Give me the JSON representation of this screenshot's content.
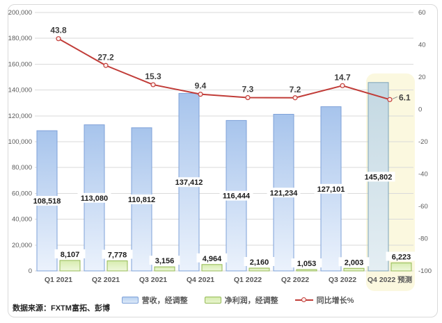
{
  "chart_data": {
    "type": "combo",
    "categories": [
      "Q1 2021",
      "Q2 2021",
      "Q3 2021",
      "Q4 2021",
      "Q1 2022",
      "Q2 2022",
      "Q3 2022",
      "Q4 2022 预测"
    ],
    "series": [
      {
        "name": "营收，经调整",
        "chart_type": "bar",
        "axis": "left",
        "values": [
          108518,
          113080,
          110812,
          137412,
          116444,
          121234,
          127101,
          145802
        ],
        "labels": [
          "108,518",
          "113,080",
          "110,812",
          "137,412",
          "116,444",
          "121,234",
          "127,101",
          "145,802"
        ]
      },
      {
        "name": "净利润，经调整",
        "chart_type": "bar",
        "axis": "left",
        "values": [
          8107,
          7778,
          3156,
          4964,
          2160,
          1053,
          2003,
          6223
        ],
        "labels": [
          "8,107",
          "7,778",
          "3,156",
          "4,964",
          "2,160",
          "1,053",
          "2,003",
          "6,223"
        ]
      },
      {
        "name": "同比增长%",
        "chart_type": "line",
        "axis": "right",
        "values": [
          43.8,
          27.2,
          15.3,
          9.4,
          7.3,
          7.2,
          14.7,
          6.1
        ],
        "labels": [
          "43.8",
          "27.2",
          "15.3",
          "9.4",
          "7.3",
          "7.2",
          "14.7",
          "6.1"
        ]
      }
    ],
    "left_axis": {
      "min": 0,
      "max": 200000,
      "tick_values": [
        0,
        20000,
        40000,
        60000,
        80000,
        100000,
        120000,
        140000,
        160000,
        180000,
        200000
      ],
      "tick_labels": [
        "0",
        "20,000",
        "40,000",
        "60,000",
        "80,000",
        "100,000",
        "120,000",
        "140,000",
        "160,000",
        "180,000",
        "200,000"
      ]
    },
    "right_axis": {
      "min": -100,
      "max": 60,
      "tick_values": [
        60,
        40,
        20,
        0,
        -20,
        -40,
        -60,
        -80,
        -100
      ],
      "tick_labels": [
        "60",
        "40",
        "20",
        "0",
        "-20",
        "-40",
        "-60",
        "-80",
        "-100"
      ],
      "position": "right"
    },
    "forecast_index": 7,
    "grid": true,
    "legend_position": "bottom"
  },
  "source_note": "数据来源：FXTM富拓、彭博",
  "colors": {
    "revenue_fill_top": "#a7c4ec",
    "revenue_fill_bottom": "#ebf2fc",
    "revenue_border": "#7ea1d8",
    "profit_fill_top": "#d7ecb0",
    "profit_fill_bottom": "#eff8dc",
    "profit_border": "#95ba55",
    "forecast_fill_top": "#c3d8e2",
    "forecast_fill_bottom": "#e4eef3",
    "forecast_border": "#7ca3b8",
    "growth_line": "#c13c38",
    "marker_fill": "#fdecea",
    "highlight_bg": "#fbf8df",
    "grid_line": "#dadada",
    "axis_text": "#595959",
    "value_text": "#1a1a1a",
    "growth_text": "#3f3f3f",
    "frame_border": "#d9d9d9"
  }
}
